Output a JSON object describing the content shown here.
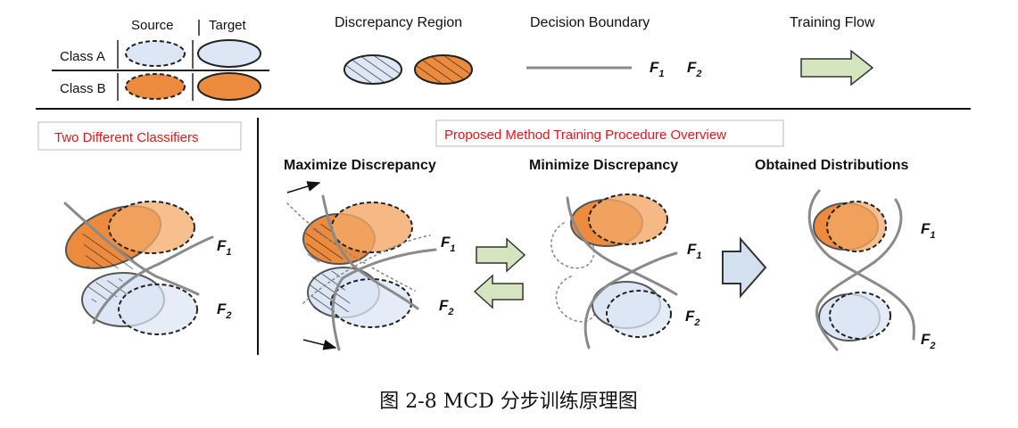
{
  "colors": {
    "orange": "#ec8a3e",
    "orange_light": "#f4a868",
    "blue_light": "#dce6f4",
    "boundary": "#8a8a8a",
    "arrow_green": "#d5e5bf",
    "arrow_blue": "#d3e0ef",
    "red_text": "#e8141b"
  },
  "legend": {
    "source_label": "Source",
    "target_label": "Target",
    "class_a_label": "Class A",
    "class_b_label": "Class B",
    "discrepancy_label": "Discrepancy Region",
    "boundary_label": "Decision Boundary",
    "f1_base": "F",
    "f1_sub": "1",
    "f2_base": "F",
    "f2_sub": "2",
    "flow_label": "Training Flow"
  },
  "left_panel": {
    "title": "Two Different Classifiers",
    "f1_base": "F",
    "f1_sub": "1",
    "f2_base": "F",
    "f2_sub": "2"
  },
  "procedure": {
    "title": "Proposed Method Training Procedure Overview",
    "steps": [
      {
        "label": "Maximize Discrepancy",
        "f1_base": "F",
        "f1_sub": "1",
        "f2_base": "F",
        "f2_sub": "2"
      },
      {
        "label": "Minimize Discrepancy",
        "f1_base": "F",
        "f1_sub": "1",
        "f2_base": "F",
        "f2_sub": "2"
      },
      {
        "label": "Obtained Distributions",
        "f1_base": "F",
        "f1_sub": "1",
        "f2_base": "F",
        "f2_sub": "2"
      }
    ]
  },
  "caption": "图 2-8 MCD 分步训练原理图"
}
